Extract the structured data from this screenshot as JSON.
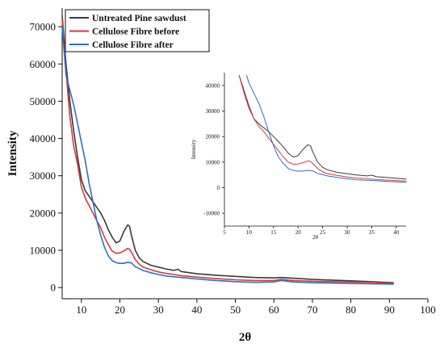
{
  "chart_data": [
    {
      "type": "line",
      "xlabel": "2θ",
      "ylabel": "Intensity",
      "xlim": [
        5,
        100
      ],
      "ylim": [
        -3000,
        75000
      ],
      "xticks": [
        10,
        20,
        30,
        40,
        50,
        60,
        70,
        80,
        90,
        100
      ],
      "yticks": [
        0,
        10000,
        20000,
        30000,
        40000,
        50000,
        60000,
        70000
      ],
      "legend": "top-left",
      "series": [
        {
          "name": "Untreated Pine sawdust",
          "color": "#3a3a3a",
          "x": [
            5,
            6,
            7,
            8,
            9,
            10,
            11,
            12,
            13,
            14,
            15,
            16,
            17,
            18,
            19,
            20,
            21,
            22,
            22.5,
            23,
            24,
            25,
            26,
            28,
            30,
            32,
            34,
            35,
            36,
            38,
            40,
            45,
            50,
            55,
            60,
            62,
            65,
            70,
            75,
            80,
            85,
            91
          ],
          "y": [
            73000,
            60000,
            50000,
            42000,
            35000,
            29000,
            26000,
            24500,
            23000,
            21500,
            20000,
            18000,
            15500,
            13500,
            12000,
            12500,
            15000,
            16800,
            16500,
            14000,
            10000,
            8000,
            7000,
            6000,
            5500,
            5000,
            4600,
            4900,
            4300,
            4000,
            3700,
            3300,
            3000,
            2700,
            2600,
            2700,
            2500,
            2200,
            2000,
            1800,
            1600,
            1300
          ]
        },
        {
          "name": "Cellulose Fibre before",
          "color": "#d6383f",
          "x": [
            5,
            6,
            7,
            8,
            9,
            10,
            11,
            12,
            13,
            14,
            15,
            16,
            17,
            18,
            19,
            20,
            21,
            22,
            22.5,
            23,
            24,
            25,
            26,
            28,
            30,
            32,
            34,
            36,
            38,
            40,
            45,
            50,
            55,
            60,
            62,
            65,
            70,
            75,
            80,
            85,
            91
          ],
          "y": [
            72000,
            58000,
            46000,
            38000,
            33000,
            27000,
            24000,
            22000,
            20000,
            18000,
            16000,
            13500,
            11500,
            9800,
            9200,
            9300,
            9800,
            10500,
            10300,
            9500,
            7500,
            6300,
            5500,
            4800,
            4200,
            3800,
            3500,
            3200,
            3000,
            2800,
            2400,
            2100,
            1900,
            1900,
            2200,
            1900,
            1700,
            1600,
            1500,
            1400,
            1100
          ]
        },
        {
          "name": "Cellulose Fibre after",
          "color": "#2f6fc4",
          "x": [
            5,
            6,
            7,
            8,
            9,
            10,
            11,
            12,
            13,
            14,
            15,
            16,
            17,
            18,
            19,
            20,
            21,
            22,
            23,
            24,
            26,
            28,
            30,
            32,
            34,
            36,
            38,
            40,
            45,
            50,
            55,
            60,
            62,
            65,
            70,
            75,
            80,
            85,
            91
          ],
          "y": [
            70000,
            57000,
            53000,
            49000,
            44000,
            39000,
            34000,
            28000,
            23000,
            18000,
            14000,
            10800,
            8500,
            7200,
            6700,
            6500,
            6500,
            6800,
            6600,
            5600,
            4600,
            4000,
            3500,
            3100,
            2900,
            2700,
            2500,
            2300,
            1900,
            1600,
            1400,
            1500,
            1900,
            1500,
            1300,
            1200,
            1100,
            1000,
            900
          ]
        }
      ]
    },
    {
      "type": "line",
      "xlabel": "2θ",
      "ylabel": "Intensity",
      "xlim": [
        5,
        42
      ],
      "ylim": [
        -15000,
        45000
      ],
      "xticks": [
        5,
        10,
        15,
        20,
        25,
        30,
        35,
        40
      ],
      "yticks": [
        -10000,
        0,
        10000,
        20000,
        30000,
        40000
      ],
      "series": [
        {
          "color": "#3a3a3a",
          "x": [
            8,
            9,
            10,
            11,
            12,
            13,
            14,
            15,
            16,
            17,
            18,
            19,
            20,
            21,
            22,
            22.5,
            23,
            24,
            25,
            26,
            28,
            30,
            32,
            34,
            35,
            36,
            38,
            40,
            42
          ],
          "y": [
            44000,
            38000,
            32000,
            27000,
            25000,
            23500,
            22000,
            20000,
            18000,
            16000,
            13500,
            12000,
            12500,
            15000,
            16800,
            16500,
            14000,
            10000,
            8000,
            7000,
            6000,
            5500,
            5000,
            4600,
            4900,
            4300,
            4000,
            3700,
            3400
          ]
        },
        {
          "color": "#d6383f",
          "x": [
            8,
            9,
            10,
            11,
            12,
            13,
            14,
            15,
            16,
            17,
            18,
            19,
            20,
            21,
            22,
            22.5,
            23,
            24,
            25,
            26,
            28,
            30,
            32,
            34,
            36,
            38,
            40,
            42
          ],
          "y": [
            44000,
            37000,
            31000,
            27000,
            24000,
            22000,
            19500,
            17000,
            14500,
            12000,
            10000,
            9200,
            9300,
            9800,
            10500,
            10300,
            9500,
            7500,
            6300,
            5500,
            4800,
            4200,
            3800,
            3500,
            3200,
            3000,
            2800,
            2600
          ]
        },
        {
          "color": "#2f6fc4",
          "x": [
            9.5,
            10,
            11,
            12,
            13,
            14,
            15,
            16,
            17,
            18,
            19,
            20,
            21,
            22,
            23,
            24,
            26,
            28,
            30,
            32,
            34,
            36,
            38,
            40,
            42
          ],
          "y": [
            44000,
            41000,
            37000,
            33000,
            28000,
            22000,
            16500,
            12000,
            9500,
            7500,
            6800,
            6500,
            6500,
            6800,
            6600,
            5600,
            4600,
            4000,
            3500,
            3100,
            2900,
            2700,
            2500,
            2300,
            2100
          ]
        }
      ]
    }
  ]
}
